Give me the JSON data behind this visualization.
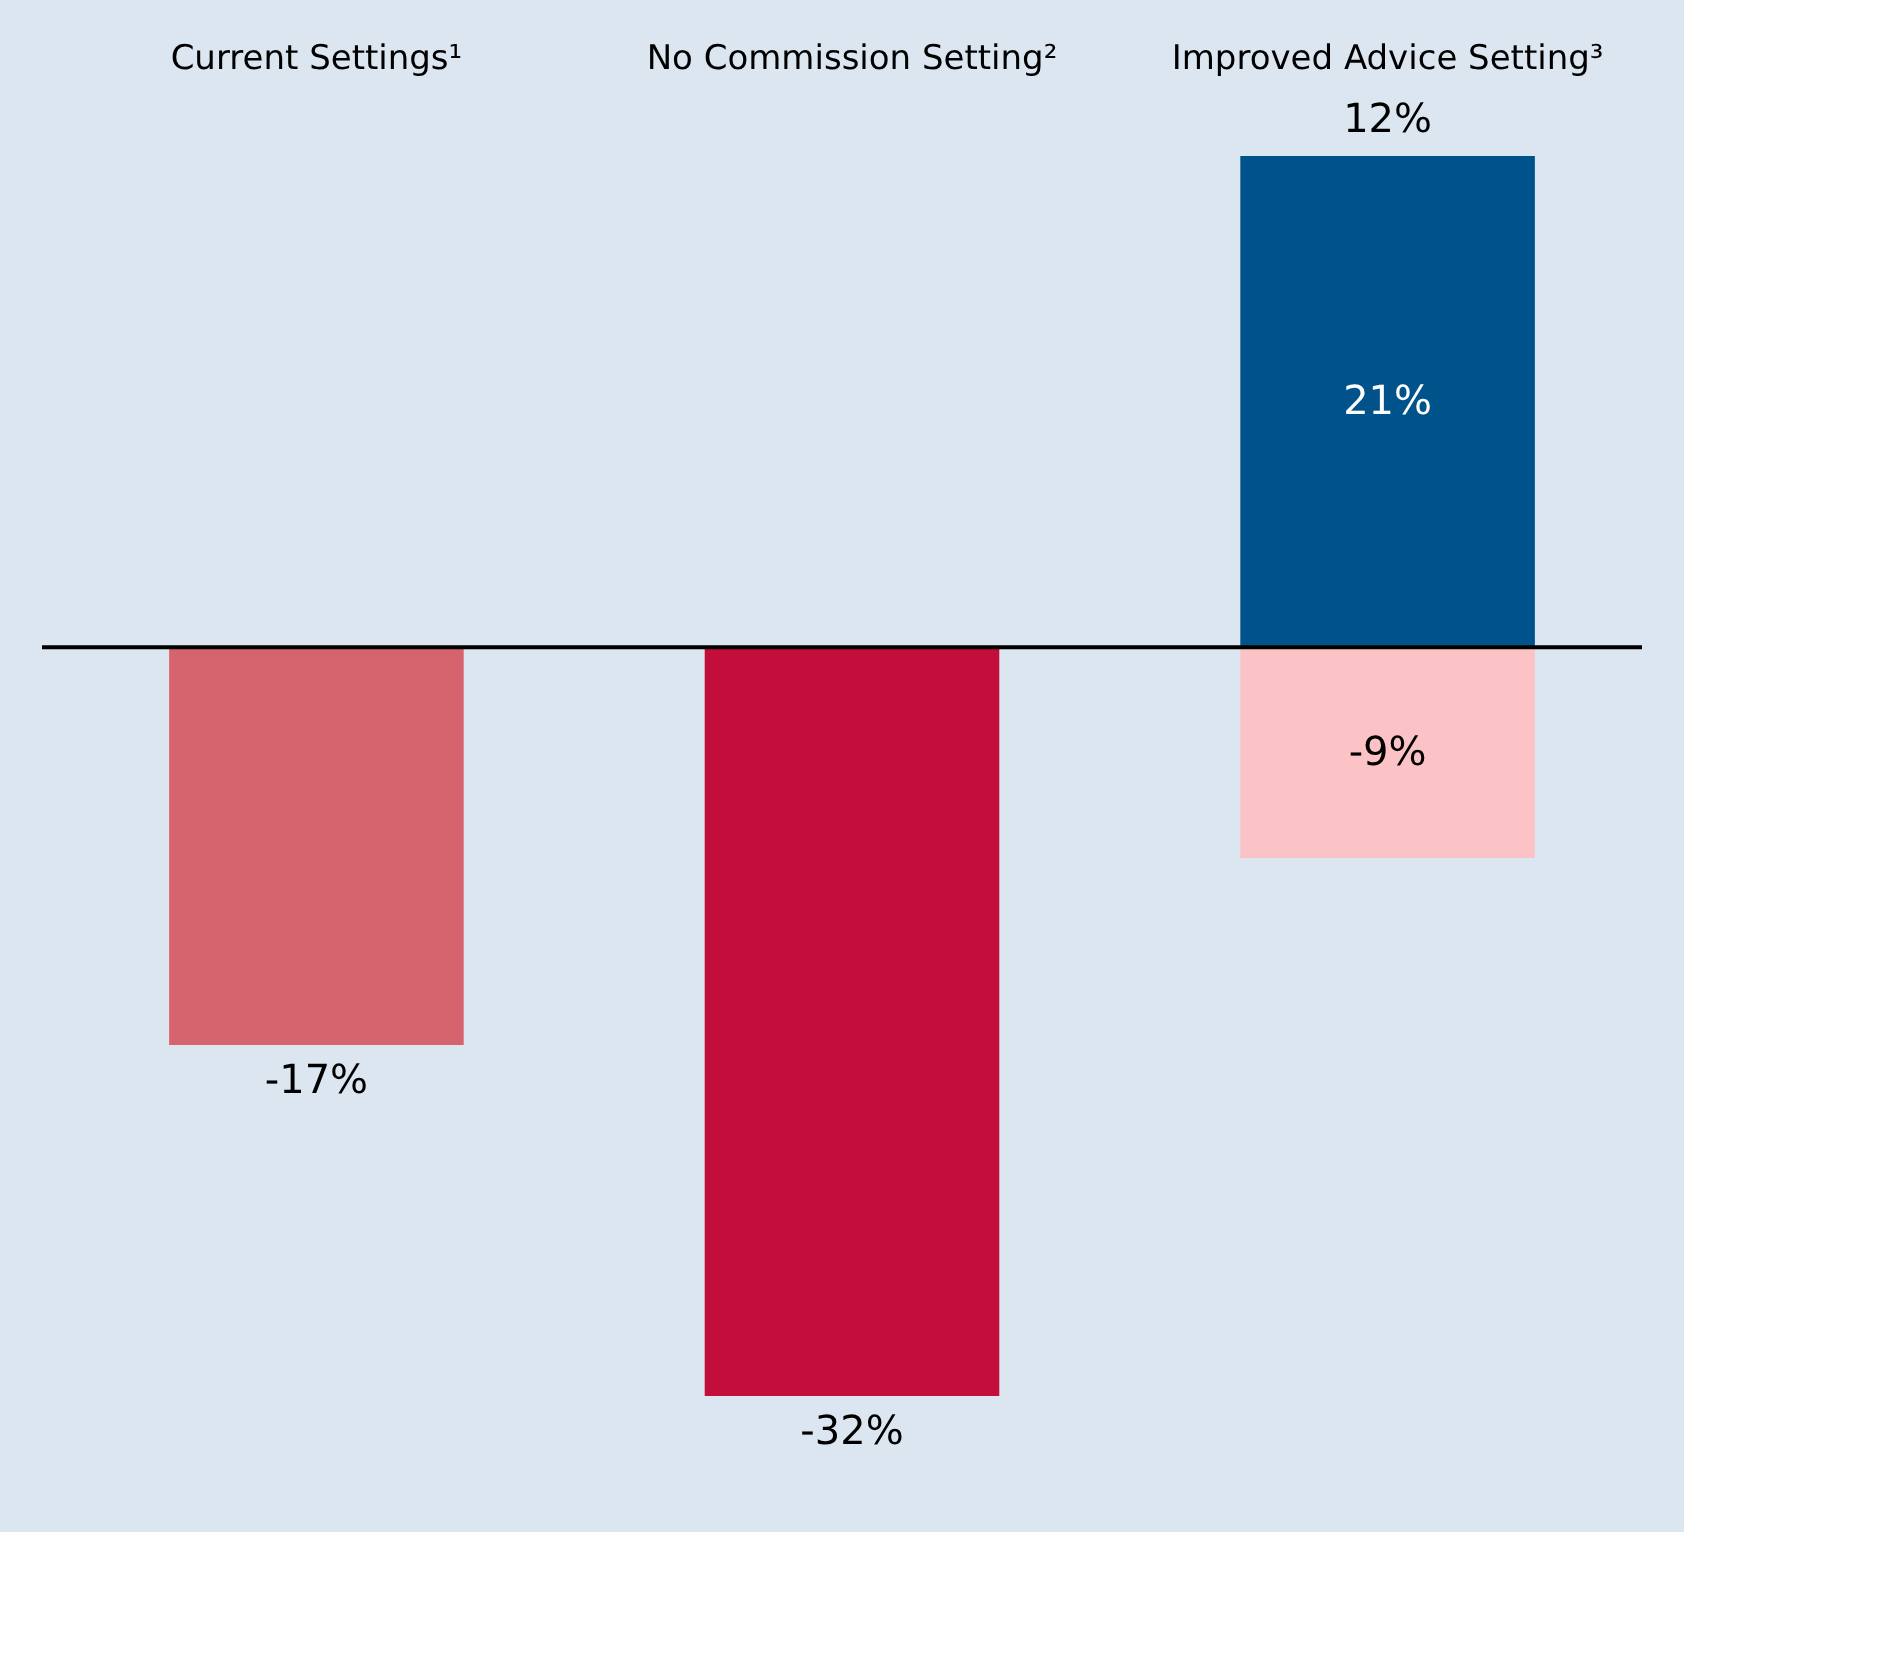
{
  "chart_data": {
    "type": "bar",
    "stacked": true,
    "categories": [
      "Current Settings¹",
      "No Commission Setting²",
      "Improved Advice Setting³"
    ],
    "series": [
      {
        "values": [
          -17,
          -32,
          -9
        ],
        "colors": [
          "#d6646e",
          "#c30d3b",
          "#fcc3c6"
        ],
        "value_labels": [
          "-17%",
          "-32%",
          "-9%"
        ]
      },
      {
        "values": [
          null,
          null,
          21
        ],
        "color": "#00538a",
        "value_labels": [
          null,
          null,
          "21%"
        ]
      }
    ],
    "totals": [
      null,
      null,
      "12%"
    ],
    "grid": false
  }
}
